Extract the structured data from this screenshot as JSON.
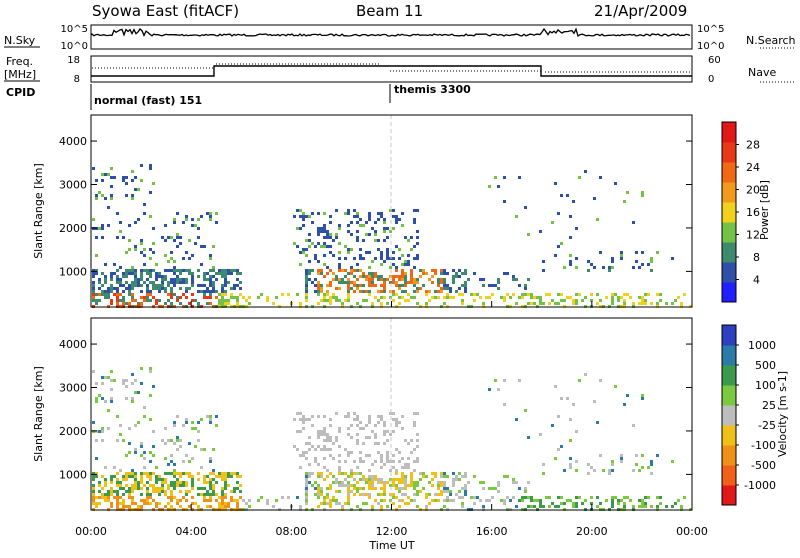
{
  "header": {
    "station": "Syowa East (fitACF)",
    "beam": "Beam 11",
    "date": "21/Apr/2009"
  },
  "strip": {
    "nsky_label": "N.Sky",
    "nsky_ticks": [
      "10^5",
      "10^0"
    ],
    "nsearch_label": "N.Search",
    "nsearch_ticks": [
      "10^5",
      "10^0"
    ],
    "freq_label_1": "Freq.",
    "freq_label_2": "[MHz]",
    "freq_ticks": [
      "18",
      "8"
    ],
    "nave_label": "Nave",
    "nave_ticks": [
      "60",
      "0"
    ],
    "cpid_label": "CPID",
    "modes": [
      {
        "label": "normal (fast) 151",
        "start_hour": 0
      },
      {
        "label": "themis 3300",
        "start_hour": 12
      }
    ]
  },
  "chart_data": [
    {
      "type": "heatmap",
      "name": "power-panel",
      "ylabel": "Slant Range [km]",
      "yticks": [
        "1000",
        "2000",
        "3000",
        "4000"
      ],
      "ylim": [
        180,
        4600
      ],
      "colorbar_label": "Power [dB]",
      "colorbar_ticks": [
        "4",
        "8",
        "12",
        "16",
        "20",
        "24",
        "28"
      ],
      "colors": [
        "#1f1fff",
        "#2f50a8",
        "#3e8a6e",
        "#73c246",
        "#f0d21e",
        "#f29a1c",
        "#f06a16",
        "#e83818",
        "#e01818"
      ]
    },
    {
      "type": "heatmap",
      "name": "velocity-panel",
      "ylabel": "Slant Range [km]",
      "yticks": [
        "1000",
        "2000",
        "3000",
        "4000"
      ],
      "ylim": [
        180,
        4600
      ],
      "xlabel": "Time UT",
      "xticks": [
        "00:00",
        "04:00",
        "08:00",
        "12:00",
        "16:00",
        "20:00",
        "00:00"
      ],
      "colorbar_label": "Velocity [m s-1]",
      "colorbar_ticks": [
        "1000",
        "500",
        "100",
        "25",
        "-25",
        "-100",
        "-500",
        "-1000"
      ],
      "colors": [
        "#2b3fbf",
        "#2c7aa8",
        "#3c9a4c",
        "#7ac93f",
        "#bdbdbd",
        "#f0c018",
        "#f09018",
        "#f06018",
        "#e01818"
      ]
    }
  ]
}
